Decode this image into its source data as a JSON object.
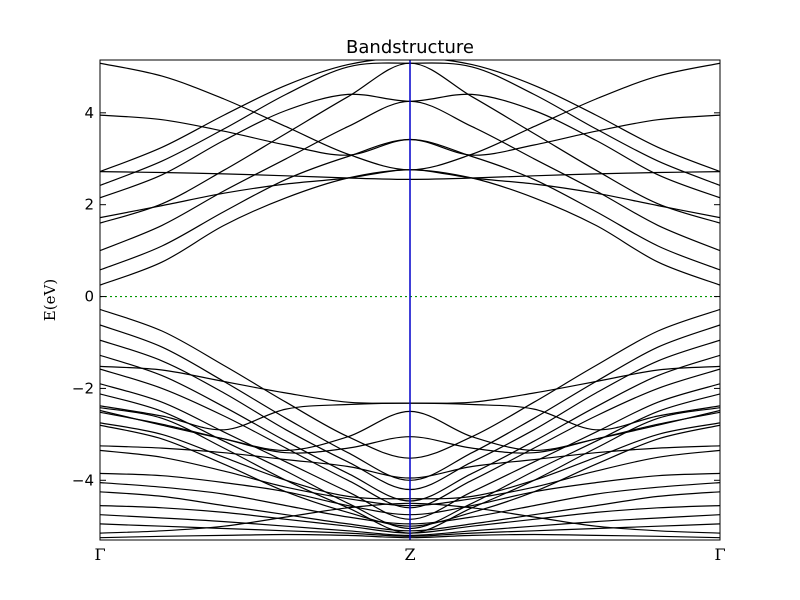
{
  "chart_data": {
    "type": "line",
    "title": "Bandstructure",
    "ylabel": "E(eV)",
    "xlabel": "",
    "ylim": [
      -5.3,
      5.15
    ],
    "yticks": [
      -4,
      -2,
      0,
      2,
      4
    ],
    "ytick_labels": [
      "−4",
      "−2",
      "0",
      "2",
      "4"
    ],
    "kpoints": [
      {
        "label": "Γ",
        "x": 0
      },
      {
        "label": "Z",
        "x": 1
      },
      {
        "label": "Γ",
        "x": 2
      }
    ],
    "fermi_level": 0,
    "colors": {
      "bands": "#000000",
      "kpoint_line": "#0000cc",
      "fermi_line": "#009900"
    },
    "series": [
      {
        "values": [
          0.25,
          0.75,
          1.55,
          2.15,
          2.58,
          2.76
        ]
      },
      {
        "values": [
          0.58,
          1.1,
          1.85,
          2.55,
          3.05,
          3.42
        ]
      },
      {
        "values": [
          1.0,
          1.55,
          2.3,
          3.0,
          3.7,
          4.25
        ]
      },
      {
        "values": [
          1.6,
          2.02,
          2.75,
          3.55,
          4.35,
          5.08
        ]
      },
      {
        "values": [
          1.72,
          1.98,
          2.25,
          2.45,
          2.58,
          2.76
        ]
      },
      {
        "values": [
          2.15,
          2.65,
          3.4,
          4.05,
          4.4,
          4.25
        ]
      },
      {
        "values": [
          2.42,
          2.95,
          3.65,
          4.4,
          5.0,
          5.08
        ]
      },
      {
        "values": [
          2.72,
          2.7,
          2.67,
          2.63,
          2.58,
          2.55
        ]
      },
      {
        "values": [
          2.72,
          3.25,
          3.95,
          4.6,
          5.05,
          5.2
        ]
      },
      {
        "values": [
          3.95,
          3.85,
          3.6,
          3.3,
          3.08,
          3.42
        ]
      },
      {
        "values": [
          5.08,
          4.8,
          4.3,
          3.7,
          3.1,
          2.76
        ]
      },
      {
        "values": [
          -0.28,
          -0.75,
          -1.5,
          -2.3,
          -3.05,
          -3.52
        ]
      },
      {
        "values": [
          -0.62,
          -1.1,
          -1.85,
          -2.65,
          -3.4,
          -4.0
        ]
      },
      {
        "values": [
          -0.95,
          -1.4,
          -2.1,
          -2.9,
          -3.6,
          -4.2
        ]
      },
      {
        "values": [
          -1.28,
          -1.72,
          -2.4,
          -3.15,
          -3.85,
          -4.45
        ]
      },
      {
        "values": [
          -1.52,
          -1.6,
          -1.85,
          -2.1,
          -2.3,
          -2.32
        ]
      },
      {
        "values": [
          -1.58,
          -2.0,
          -2.6,
          -3.3,
          -4.0,
          -4.6
        ]
      },
      {
        "values": [
          -1.9,
          -2.3,
          -2.95,
          -3.6,
          -4.25,
          -4.85
        ]
      },
      {
        "values": [
          -2.12,
          -2.5,
          -3.15,
          -3.8,
          -4.5,
          -5.05
        ]
      },
      {
        "values": [
          -2.38,
          -2.6,
          -2.9,
          -2.45,
          -2.35,
          -2.32
        ]
      },
      {
        "values": [
          -2.42,
          -2.65,
          -3.3,
          -4.0,
          -4.6,
          -5.15
        ]
      },
      {
        "values": [
          -2.48,
          -2.8,
          -3.1,
          -3.35,
          -3.05,
          -2.5
        ]
      },
      {
        "values": [
          -2.52,
          -2.78,
          -3.1,
          -3.4,
          -3.3,
          -3.05
        ]
      },
      {
        "values": [
          -2.75,
          -3.0,
          -3.5,
          -4.0,
          -4.35,
          -4.4
        ]
      },
      {
        "values": [
          -2.8,
          -3.1,
          -3.65,
          -4.25,
          -4.7,
          -5.0
        ]
      },
      {
        "values": [
          -3.25,
          -3.3,
          -3.4,
          -3.55,
          -3.7,
          -3.95
        ]
      },
      {
        "values": [
          -3.35,
          -3.5,
          -3.8,
          -4.15,
          -4.4,
          -4.55
        ]
      },
      {
        "values": [
          -3.85,
          -3.9,
          -4.05,
          -4.25,
          -4.55,
          -4.75
        ]
      },
      {
        "values": [
          -4.05,
          -4.15,
          -4.3,
          -4.55,
          -4.8,
          -4.95
        ]
      },
      {
        "values": [
          -4.25,
          -4.35,
          -4.55,
          -4.75,
          -4.95,
          -5.1
        ]
      },
      {
        "values": [
          -4.55,
          -4.6,
          -4.7,
          -4.85,
          -5.0,
          -5.15
        ]
      },
      {
        "values": [
          -4.75,
          -4.82,
          -4.9,
          -5.0,
          -5.1,
          -5.2
        ]
      },
      {
        "values": [
          -4.95,
          -5.0,
          -5.05,
          -5.1,
          -5.15,
          -5.22
        ]
      },
      {
        "values": [
          -5.15,
          -5.1,
          -5.0,
          -4.8,
          -4.6,
          -4.5
        ]
      },
      {
        "values": [
          -5.25,
          -5.22,
          -5.2,
          -5.18,
          -5.2,
          -5.25
        ]
      }
    ]
  }
}
